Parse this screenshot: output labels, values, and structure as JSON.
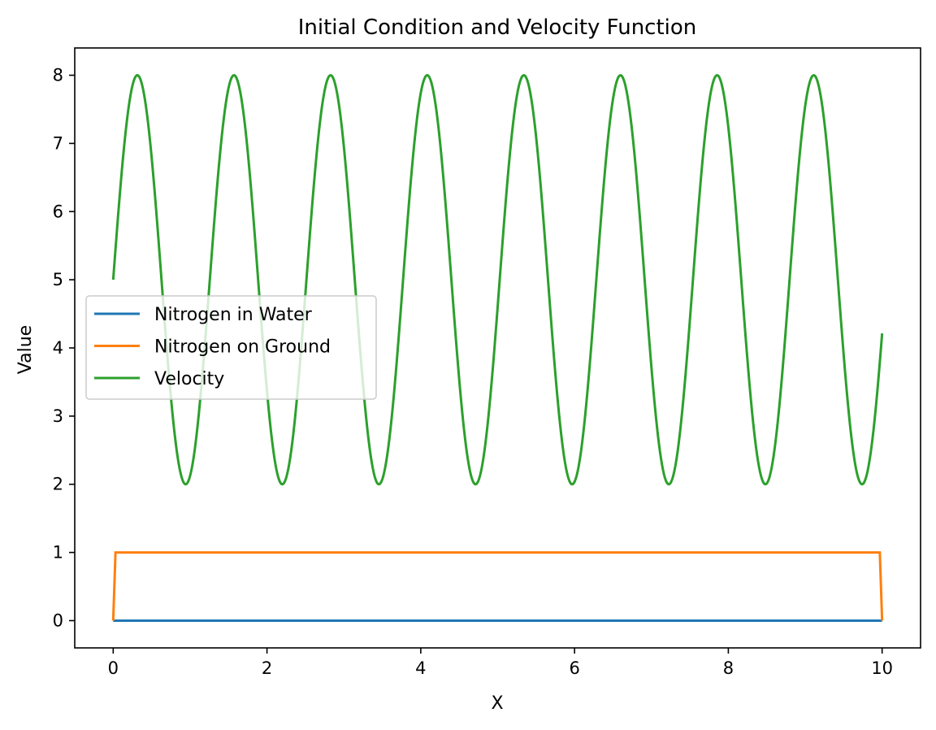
{
  "chart_data": {
    "type": "line",
    "title": "Initial Condition and Velocity Function",
    "xlabel": "X",
    "ylabel": "Value",
    "xlim": [
      -0.5,
      10.5
    ],
    "ylim": [
      -0.4,
      8.4
    ],
    "xticks": [
      0,
      2,
      4,
      6,
      8,
      10
    ],
    "xtick_labels": [
      "0",
      "2",
      "4",
      "6",
      "8",
      "10"
    ],
    "yticks": [
      0,
      1,
      2,
      3,
      4,
      5,
      6,
      7,
      8
    ],
    "ytick_labels": [
      "0",
      "1",
      "2",
      "3",
      "4",
      "5",
      "6",
      "7",
      "8"
    ],
    "grid": false,
    "legend_position": "center-left",
    "series": [
      {
        "name": "Nitrogen in Water",
        "color": "#1f77b4",
        "x": [
          0,
          10
        ],
        "y": [
          0,
          0
        ]
      },
      {
        "name": "Nitrogen on Ground",
        "color": "#ff7f0e",
        "x": [
          0,
          0.03,
          9.97,
          10
        ],
        "y": [
          0,
          1,
          1,
          0
        ]
      },
      {
        "name": "Velocity",
        "color": "#2ca02c",
        "x_range": [
          0,
          10
        ],
        "function": "5 + 3*sin(5*x)",
        "samples_note": "",
        "y_min": 2,
        "y_max": 8,
        "y_start": 5,
        "y_end": 4.2
      }
    ]
  }
}
